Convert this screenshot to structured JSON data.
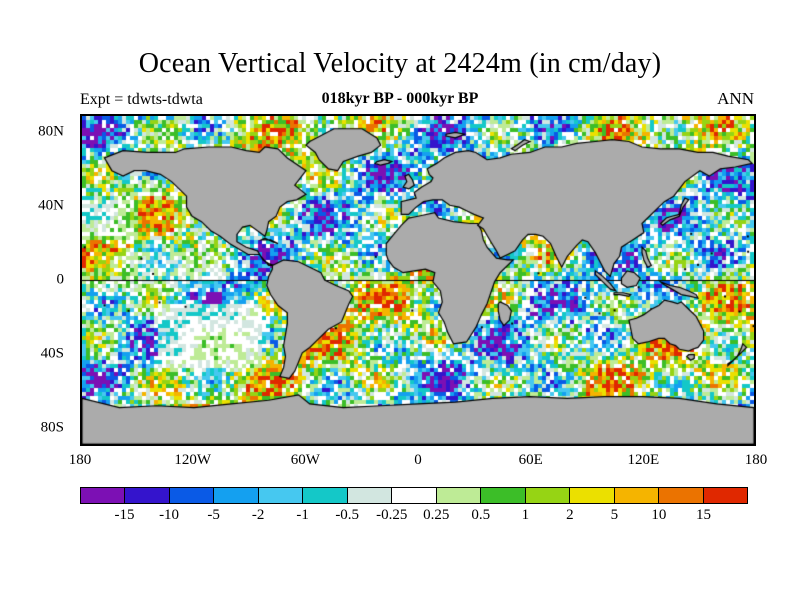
{
  "title": "Ocean Vertical Velocity at 2424m (in cm/day)",
  "subtitle": "018kyr BP - 000kyr BP",
  "experiment_label": "Expt = tdwts-tdwta",
  "season_label": "ANN",
  "chart_data": {
    "type": "heatmap",
    "title": "Ocean Vertical Velocity at 2424m (in cm/day)",
    "subtitle": "018kyr BP - 000kyr BP",
    "experiment": "tdwts-tdwta",
    "season": "ANN",
    "units": "cm/day",
    "depth": "2424m",
    "projection": "equirectangular world map; ocean cells colored by velocity difference, land masses gray with black coastlines",
    "lon_range": [
      -180,
      180
    ],
    "lat_range": [
      -90,
      90
    ],
    "lat_ticks": [
      {
        "label": "80N",
        "value": 80
      },
      {
        "label": "40N",
        "value": 40
      },
      {
        "label": "0",
        "value": 0
      },
      {
        "label": "40S",
        "value": -40
      },
      {
        "label": "80S",
        "value": -80
      }
    ],
    "lon_ticks": [
      {
        "label": "180",
        "value": -180
      },
      {
        "label": "120W",
        "value": -120
      },
      {
        "label": "60W",
        "value": -60
      },
      {
        "label": "0",
        "value": 0
      },
      {
        "label": "60E",
        "value": 60
      },
      {
        "label": "120E",
        "value": 120
      },
      {
        "label": "180",
        "value": 180
      }
    ],
    "color_levels": [
      "-15",
      "-10",
      "-5",
      "-2",
      "-1",
      "-0.5",
      "-0.25",
      "0.25",
      "0.5",
      "1",
      "2",
      "5",
      "10",
      "15"
    ],
    "palette": [
      "#7C10B4",
      "#3414CC",
      "#0A5AE6",
      "#14A0F0",
      "#46C8F0",
      "#14C8C8",
      "#D2E6E0",
      "#FFFFFF",
      "#BEEB96",
      "#3CBE28",
      "#96D414",
      "#EBE000",
      "#F5B400",
      "#EB7300",
      "#E02800"
    ],
    "land_color": "#ABABAB",
    "background_color": "#FFFFFF"
  }
}
